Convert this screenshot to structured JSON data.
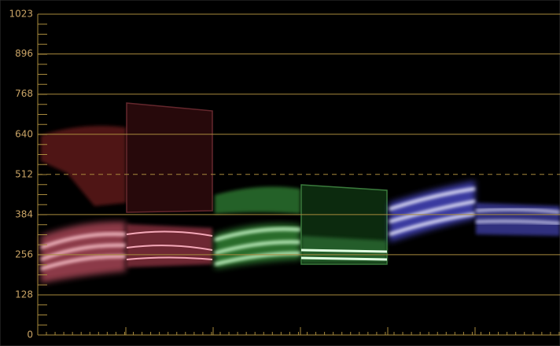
{
  "scope": {
    "ylim": [
      0,
      1023
    ],
    "yticks": [
      0,
      128,
      256,
      384,
      512,
      640,
      768,
      896,
      1023
    ],
    "grid": true,
    "dashed_gridline": 512,
    "grid_color": "#a88a3c",
    "label_color": "#c9a466"
  }
}
